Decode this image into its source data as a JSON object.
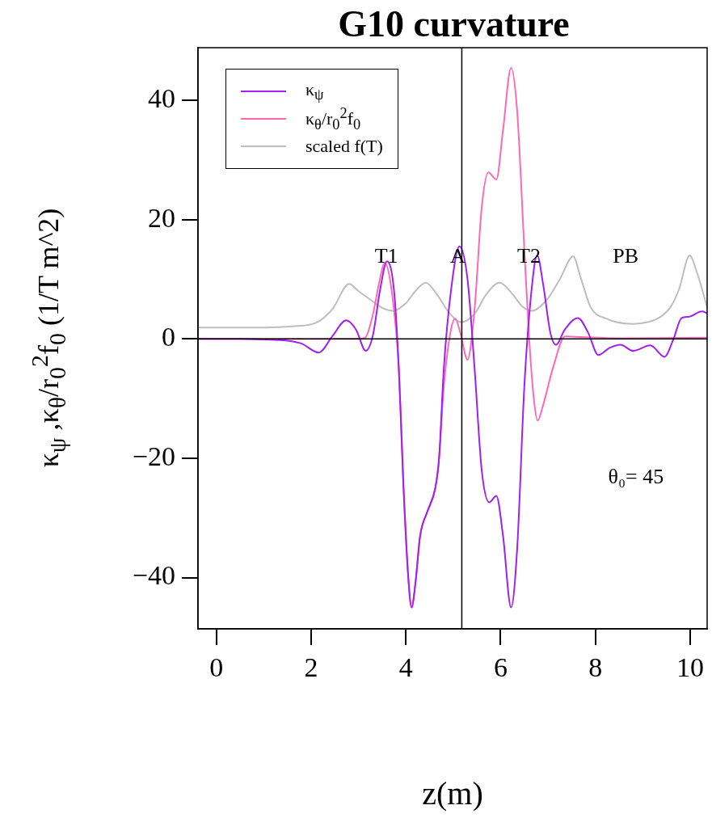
{
  "chart_data": {
    "type": "line",
    "title": "G10 curvature",
    "xlabel": "z(m)",
    "ylabel": "κ$_{ψ}$ ,κ$_{θ}$/r$_{0}$$^{2}$f$_{0}$ (1/T m^2)",
    "xlim": [
      -0.39,
      10.36
    ],
    "xticks": [
      0,
      2,
      4,
      6,
      8,
      10
    ],
    "ylim": [
      -48.6,
      48.8
    ],
    "yticks": [
      -40,
      -20,
      0,
      20,
      40
    ],
    "grid": false,
    "legend": "top left",
    "series": [
      {
        "name": "κ$_{ψ}$",
        "color": "#a020f0",
        "x": [
          -0.39,
          0.5,
          1.0,
          1.5,
          1.8,
          2.16,
          2.45,
          2.74,
          2.95,
          3.15,
          3.3,
          3.45,
          3.6,
          3.75,
          3.85,
          3.95,
          4.05,
          4.12,
          4.2,
          4.3,
          4.45,
          4.62,
          4.7,
          4.8,
          4.95,
          5.13,
          5.3,
          5.45,
          5.6,
          5.76,
          5.91,
          6.05,
          6.22,
          6.35,
          6.5,
          6.65,
          6.77,
          6.9,
          7.05,
          7.17,
          7.35,
          7.63,
          7.85,
          8.06,
          8.3,
          8.53,
          8.8,
          9.16,
          9.46,
          9.65,
          9.82,
          9.97,
          10.25,
          10.36
        ],
        "values": [
          0,
          0,
          -0.1,
          -0.3,
          -0.8,
          -2.3,
          0.5,
          3.1,
          1.5,
          -2.0,
          0.5,
          8,
          13,
          8,
          -5,
          -25,
          -40,
          -45,
          -41,
          -33,
          -29,
          -25,
          -20,
          -5,
          8,
          15.5,
          10,
          -5,
          -22,
          -27.4,
          -26.3,
          -33,
          -45,
          -35,
          -8,
          8,
          14,
          9,
          1,
          -1,
          1.5,
          3.5,
          1,
          -2.7,
          -1.5,
          -1.0,
          -2.0,
          -1.1,
          -3.0,
          0,
          3.5,
          3.7,
          4.6,
          4.3
        ]
      },
      {
        "name": "κ$_{θ}$/r$_{0}$$^{2}$f$_{0}$",
        "color": "#ff69b4",
        "x": [
          -0.39,
          3.0,
          3.15,
          3.3,
          3.45,
          3.55,
          3.7,
          3.85,
          3.95,
          4.05,
          4.12,
          4.2,
          4.3,
          4.45,
          4.62,
          4.7,
          4.8,
          4.95,
          5.04,
          5.15,
          5.3,
          5.45,
          5.6,
          5.74,
          5.91,
          6.05,
          6.22,
          6.35,
          6.5,
          6.6,
          6.7,
          6.78,
          6.9,
          7.1,
          7.36,
          7.7,
          8.5,
          10.36
        ],
        "values": [
          0,
          0,
          0.3,
          4,
          10,
          12.8,
          8,
          -5,
          -25,
          -40,
          -45,
          -41,
          -33,
          -29,
          -25,
          -20,
          -8,
          1.5,
          3.4,
          1,
          -3.5,
          5,
          22,
          27.9,
          26.7,
          35,
          45.4,
          38,
          15,
          0.3,
          -10,
          -13.7,
          -11,
          -5,
          0.4,
          0.3,
          0.1,
          0.2
        ]
      },
      {
        "name": "scaled f(T)",
        "color": "#bebebe",
        "x": [
          -0.39,
          1.0,
          1.6,
          2.1,
          2.45,
          2.8,
          3.0,
          3.28,
          3.5,
          3.73,
          4.0,
          4.2,
          4.42,
          4.65,
          4.9,
          5.17,
          5.45,
          5.7,
          5.98,
          6.25,
          6.45,
          6.66,
          6.97,
          7.25,
          7.53,
          7.7,
          7.9,
          8.23,
          8.77,
          9.1,
          9.38,
          9.6,
          9.77,
          9.99,
          10.15,
          10.25,
          10.36
        ],
        "values": [
          1.9,
          1.9,
          2.1,
          2.7,
          5,
          9.2,
          8,
          6.4,
          5.2,
          4.7,
          6,
          8,
          9.4,
          7.5,
          4.5,
          2.8,
          4.2,
          7.5,
          9.4,
          7.5,
          5.5,
          4.7,
          6.5,
          10,
          13.8,
          10,
          5.3,
          3.4,
          2.5,
          2.8,
          3.7,
          5.5,
          8.4,
          14,
          11,
          8.4,
          5.3
        ]
      }
    ],
    "ref_lines": [
      {
        "axis": "x",
        "value": 5.18,
        "color": "#000000"
      },
      {
        "axis": "y",
        "value": 0,
        "color": "#000000"
      }
    ],
    "annotations": [
      "T1",
      "A",
      "T2",
      "PB",
      "θ₀= 45"
    ]
  }
}
